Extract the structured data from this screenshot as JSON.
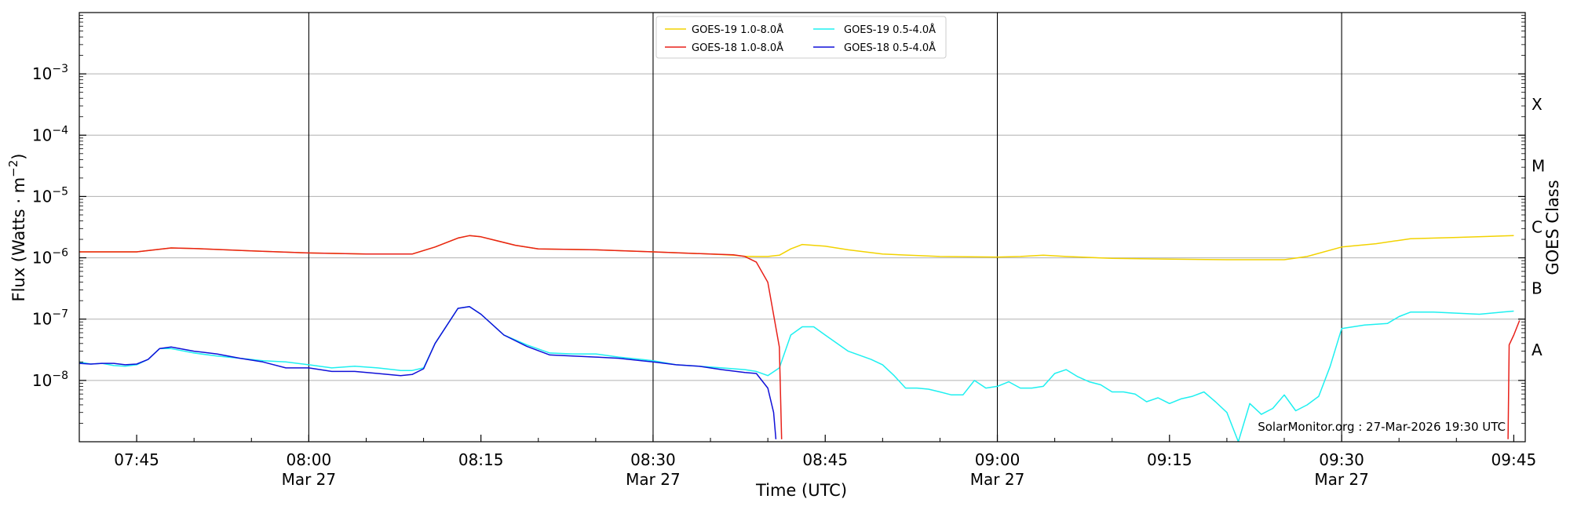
{
  "chart_data": {
    "type": "line",
    "title": "",
    "xlabel": "Time (UTC)",
    "ylabel_prefix": "Flux (Watts · m",
    "ylabel_sup": "−2",
    "ylabel_suffix": ")",
    "right_label": "GOES Class",
    "y_scale": "log",
    "ylim": [
      1e-09,
      0.01
    ],
    "xlim": [
      "2026-03-27 07:40",
      "2026-03-27 09:46"
    ],
    "x_ticks": [
      {
        "t": "07:45",
        "label": "07:45",
        "sub": ""
      },
      {
        "t": "08:00",
        "label": "08:00",
        "sub": "Mar 27"
      },
      {
        "t": "08:15",
        "label": "08:15",
        "sub": ""
      },
      {
        "t": "08:30",
        "label": "08:30",
        "sub": "Mar 27"
      },
      {
        "t": "08:45",
        "label": "08:45",
        "sub": ""
      },
      {
        "t": "09:00",
        "label": "09:00",
        "sub": "Mar 27"
      },
      {
        "t": "09:15",
        "label": "09:15",
        "sub": ""
      },
      {
        "t": "09:30",
        "label": "09:30",
        "sub": "Mar 27"
      },
      {
        "t": "09:45",
        "label": "09:45",
        "sub": ""
      }
    ],
    "vertical_lines": [
      "08:00",
      "08:30",
      "09:00",
      "09:30"
    ],
    "y_ticks": [
      {
        "exp": -8,
        "label": "10",
        "sup": "−8"
      },
      {
        "exp": -7,
        "label": "10",
        "sup": "−7"
      },
      {
        "exp": -6,
        "label": "10",
        "sup": "−6"
      },
      {
        "exp": -5,
        "label": "10",
        "sup": "−5"
      },
      {
        "exp": -4,
        "label": "10",
        "sup": "−4"
      },
      {
        "exp": -3,
        "label": "10",
        "sup": "−3"
      }
    ],
    "goes_classes": [
      {
        "label": "A",
        "exp": -7.5
      },
      {
        "label": "B",
        "exp": -6.5
      },
      {
        "label": "C",
        "exp": -5.5
      },
      {
        "label": "M",
        "exp": -4.5
      },
      {
        "label": "X",
        "exp": -3.5
      }
    ],
    "grid": true,
    "legend_position": "top-center",
    "annotation": "SolarMonitor.org : 27-Mar-2026 19:30 UTC",
    "series": [
      {
        "name": "GOES-19 1.0-8.0Å",
        "color": "#f2d200",
        "x": [
          "07:40",
          "07:45",
          "07:48",
          "07:50",
          "07:55",
          "08:00",
          "08:05",
          "08:09",
          "08:11",
          "08:13",
          "08:14",
          "08:15",
          "08:18",
          "08:20",
          "08:25",
          "08:30",
          "08:35",
          "08:37",
          "08:38",
          "08:39",
          "08:40",
          "08:41",
          "08:42",
          "08:43",
          "08:45",
          "08:47",
          "08:50",
          "08:55",
          "09:00",
          "09:02",
          "09:04",
          "09:06",
          "09:10",
          "09:15",
          "09:20",
          "09:25",
          "09:27",
          "09:30",
          "09:33",
          "09:36",
          "09:40",
          "09:45"
        ],
        "y": [
          1.25e-06,
          1.25e-06,
          1.45e-06,
          1.42e-06,
          1.3e-06,
          1.2e-06,
          1.15e-06,
          1.15e-06,
          1.5e-06,
          2.1e-06,
          2.3e-06,
          2.2e-06,
          1.6e-06,
          1.4e-06,
          1.35e-06,
          1.25e-06,
          1.15e-06,
          1.1e-06,
          1.06e-06,
          1.05e-06,
          1.05e-06,
          1.1e-06,
          1.4e-06,
          1.65e-06,
          1.55e-06,
          1.35e-06,
          1.15e-06,
          1.05e-06,
          1.03e-06,
          1.05e-06,
          1.1e-06,
          1.05e-06,
          9.8e-07,
          9.5e-07,
          9.3e-07,
          9.3e-07,
          1.05e-06,
          1.5e-06,
          1.7e-06,
          2.05e-06,
          2.15e-06,
          2.3e-06
        ]
      },
      {
        "name": "GOES-18 1.0-8.0Å",
        "color": "#e8211a",
        "x": [
          "07:40",
          "07:45",
          "07:48",
          "07:50",
          "07:55",
          "08:00",
          "08:05",
          "08:09",
          "08:11",
          "08:13",
          "08:14",
          "08:15",
          "08:18",
          "08:20",
          "08:25",
          "08:30",
          "08:35",
          "08:37",
          "08:38",
          "08:39",
          "08:40",
          "08:41",
          "08:41.2",
          null,
          "09:44.5",
          "09:44.6",
          "09:45",
          "09:45.5"
        ],
        "y": [
          1.25e-06,
          1.25e-06,
          1.45e-06,
          1.42e-06,
          1.3e-06,
          1.2e-06,
          1.15e-06,
          1.15e-06,
          1.5e-06,
          2.1e-06,
          2.3e-06,
          2.2e-06,
          1.6e-06,
          1.4e-06,
          1.35e-06,
          1.25e-06,
          1.15e-06,
          1.12e-06,
          1.05e-06,
          8.5e-07,
          4e-07,
          3.5e-08,
          1.1e-09,
          null,
          1.1e-09,
          3.8e-08,
          5.5e-08,
          9.5e-08
        ]
      },
      {
        "name": "GOES-19 0.5-4.0Å",
        "color": "#1ef0f0",
        "x": [
          "07:40",
          "07:41",
          "07:42",
          "07:43",
          "07:44",
          "07:45",
          "07:46",
          "07:47",
          "07:48",
          "07:50",
          "07:52",
          "07:54",
          "07:56",
          "07:58",
          "08:00",
          "08:02",
          "08:04",
          "08:06",
          "08:08",
          "08:09",
          "08:10",
          "08:11",
          "08:13",
          "08:14",
          "08:15",
          "08:17",
          "08:19",
          "08:21",
          "08:23",
          "08:25",
          "08:27",
          "08:29",
          "08:30",
          "08:32",
          "08:34",
          "08:36",
          "08:38",
          "08:39",
          "08:40",
          "08:41",
          "08:42",
          "08:43",
          "08:44",
          "08:45",
          "08:47",
          "08:49",
          "08:50",
          "08:51",
          "08:52",
          "08:53",
          "08:54",
          "08:55",
          "08:56",
          "08:57",
          "08:58",
          "08:59",
          "09:00",
          "09:01",
          "09:02",
          "09:03",
          "09:04",
          "09:05",
          "09:06",
          "09:07",
          "09:08",
          "09:09",
          "09:10",
          "09:11",
          "09:12",
          "09:13",
          "09:14",
          "09:15",
          "09:16",
          "09:17",
          "09:18",
          "09:19",
          "09:20",
          "09:21",
          "09:22",
          "09:23",
          "09:24",
          "09:25",
          "09:26",
          "09:27",
          "09:28",
          "09:29",
          "09:30",
          "09:32",
          "09:34",
          "09:35",
          "09:36",
          "09:38",
          "09:40",
          "09:42",
          "09:44",
          "09:45"
        ],
        "y": [
          2e-08,
          1.85e-08,
          1.9e-08,
          1.75e-08,
          1.7e-08,
          1.8e-08,
          2.2e-08,
          3.3e-08,
          3.3e-08,
          2.8e-08,
          2.5e-08,
          2.3e-08,
          2.1e-08,
          2e-08,
          1.8e-08,
          1.6e-08,
          1.7e-08,
          1.6e-08,
          1.45e-08,
          1.45e-08,
          1.6e-08,
          4e-08,
          1.5e-07,
          1.6e-07,
          1.2e-07,
          5.5e-08,
          3.8e-08,
          2.8e-08,
          2.7e-08,
          2.7e-08,
          2.4e-08,
          2.2e-08,
          2.1e-08,
          1.8e-08,
          1.7e-08,
          1.6e-08,
          1.5e-08,
          1.4e-08,
          1.2e-08,
          1.6e-08,
          5.5e-08,
          7.5e-08,
          7.5e-08,
          5.5e-08,
          3e-08,
          2.2e-08,
          1.8e-08,
          1.2e-08,
          7.5e-09,
          7.5e-09,
          7.2e-09,
          6.5e-09,
          5.8e-09,
          5.8e-09,
          1e-08,
          7.5e-09,
          8e-09,
          9.5e-09,
          7.5e-09,
          7.5e-09,
          8e-09,
          1.3e-08,
          1.5e-08,
          1.15e-08,
          9.5e-09,
          8.5e-09,
          6.5e-09,
          6.5e-09,
          6e-09,
          4.5e-09,
          5.2e-09,
          4.2e-09,
          5e-09,
          5.5e-09,
          6.5e-09,
          4.5e-09,
          3e-09,
          1e-09,
          4.2e-09,
          2.8e-09,
          3.5e-09,
          5.8e-09,
          3.2e-09,
          4e-09,
          5.5e-09,
          1.7e-08,
          7e-08,
          8e-08,
          8.5e-08,
          1.1e-07,
          1.3e-07,
          1.3e-07,
          1.25e-07,
          1.2e-07,
          1.3e-07,
          1.35e-07
        ]
      },
      {
        "name": "GOES-18 0.5-4.0Å",
        "color": "#1010d8",
        "x": [
          "07:40",
          "07:41",
          "07:42",
          "07:43",
          "07:44",
          "07:45",
          "07:46",
          "07:47",
          "07:48",
          "07:50",
          "07:52",
          "07:54",
          "07:56",
          "07:58",
          "08:00",
          "08:02",
          "08:04",
          "08:06",
          "08:08",
          "08:09",
          "08:10",
          "08:11",
          "08:13",
          "08:14",
          "08:15",
          "08:17",
          "08:19",
          "08:21",
          "08:23",
          "08:25",
          "08:27",
          "08:29",
          "08:30",
          "08:32",
          "08:34",
          "08:36",
          "08:38",
          "08:39",
          "08:40",
          "08:40.5",
          "08:40.7"
        ],
        "y": [
          1.9e-08,
          1.85e-08,
          1.9e-08,
          1.9e-08,
          1.8e-08,
          1.85e-08,
          2.2e-08,
          3.3e-08,
          3.5e-08,
          3e-08,
          2.7e-08,
          2.3e-08,
          2e-08,
          1.6e-08,
          1.6e-08,
          1.4e-08,
          1.4e-08,
          1.3e-08,
          1.2e-08,
          1.25e-08,
          1.55e-08,
          4e-08,
          1.5e-07,
          1.6e-07,
          1.2e-07,
          5.5e-08,
          3.6e-08,
          2.6e-08,
          2.5e-08,
          2.4e-08,
          2.3e-08,
          2.1e-08,
          2e-08,
          1.8e-08,
          1.7e-08,
          1.5e-08,
          1.35e-08,
          1.3e-08,
          7.5e-09,
          3e-09,
          1.1e-09
        ]
      }
    ]
  }
}
